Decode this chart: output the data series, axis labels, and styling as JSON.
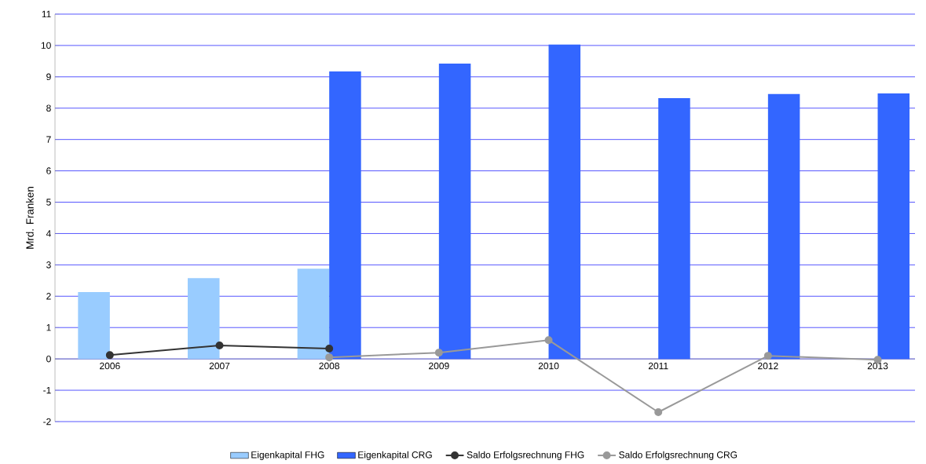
{
  "chart_data": {
    "type": "bar",
    "ylabel": "Mrd. Franken",
    "categories": [
      "2006",
      "2007",
      "2008",
      "2009",
      "2010",
      "2011",
      "2012",
      "2013"
    ],
    "series": [
      {
        "name": "Eigenkapital FHG",
        "color": "#99ccff",
        "values": [
          2.13,
          2.58,
          2.88,
          null,
          null,
          null,
          null,
          null
        ]
      },
      {
        "name": "Eigenkapital CRG",
        "color": "#3366ff",
        "values": [
          null,
          null,
          9.17,
          9.42,
          10.03,
          8.32,
          8.45,
          8.47
        ]
      },
      {
        "name": "Saldo Erfolgsrechnung FHG",
        "type": "line",
        "color": "#333333",
        "marker": "circle",
        "values": [
          0.12,
          0.43,
          0.33,
          null,
          null,
          null,
          null,
          null
        ]
      },
      {
        "name": "Saldo Erfolgsrechnung CRG",
        "type": "line",
        "color": "#999999",
        "marker": "circle",
        "values": [
          null,
          null,
          0.05,
          0.2,
          0.6,
          -1.7,
          0.1,
          -0.03
        ]
      }
    ],
    "ylim": [
      -2,
      11
    ],
    "yticks": [
      -2,
      -1,
      0,
      1,
      2,
      3,
      4,
      5,
      6,
      7,
      8,
      9,
      10,
      11
    ],
    "grid": "y",
    "legend": "bottom"
  }
}
